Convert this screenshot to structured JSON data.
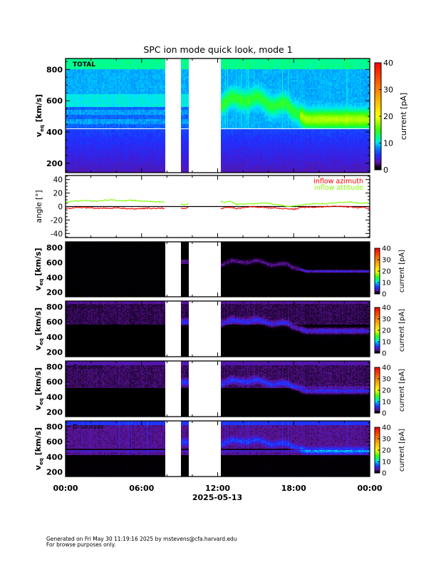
{
  "title": "SPC ion mode quick look, mode 1",
  "footer": {
    "line1": "Generated on Fri May 30 11:19:16 2025 by mstevens@cfa.harvard.edu",
    "line2": "For browse purposes only."
  },
  "x_axis": {
    "tick_labels": [
      "00:00",
      "06:00",
      "12:00",
      "18:00",
      "00:00"
    ],
    "tick_hours": [
      0,
      6,
      12,
      18,
      24
    ],
    "date_label": "2025-05-13"
  },
  "colors": {
    "azimuth": "#ff0000",
    "attitude": "#80ff00",
    "colormap": [
      "#000000",
      "#6a1aa8",
      "#1e2cff",
      "#00e0ff",
      "#00ff80",
      "#ffff00",
      "#ff8000",
      "#ff0000"
    ]
  },
  "chart_data": [
    {
      "type": "heatmap",
      "panel": "total",
      "label": "TOTAL",
      "ylabel_main": "v",
      "ylabel_sub": "eq",
      "ylabel_unit": " [km/s]",
      "ylim": [
        140,
        870
      ],
      "yticks": [
        200,
        400,
        600,
        800
      ],
      "colorbar": {
        "label": "current [pA]",
        "range": [
          0,
          40
        ],
        "ticks": [
          0,
          10,
          20,
          30,
          40
        ]
      },
      "data_gaps_hours": [
        [
          7.85,
          9.1
        ],
        [
          9.7,
          12.25
        ]
      ],
      "peak_speed_kms": {
        "hours": [
          0,
          8,
          12.3,
          14,
          16,
          17.5,
          19,
          24
        ],
        "values": [
          600,
          600,
          580,
          620,
          590,
          560,
          480,
          480
        ]
      }
    },
    {
      "type": "line",
      "panel": "angle",
      "ylabel": "angle [°]",
      "ylim": [
        -46,
        46
      ],
      "yticks": [
        -40,
        -20,
        0,
        20,
        40
      ],
      "legend_placement": "top-right",
      "series": [
        {
          "name": "inflow azimuth",
          "segments": [
            {
              "hours": [
                0,
                0.5,
                1,
                1.5,
                2,
                2.5,
                3,
                3.5,
                4,
                4.5,
                5,
                5.5,
                6,
                6.5,
                7,
                7.5,
                7.8
              ],
              "values": [
                -3,
                -2.5,
                -1,
                -1.5,
                -2,
                -2.5,
                -2.5,
                -3,
                -2,
                -2.5,
                -3,
                -3.5,
                -3,
                -2.5,
                -3,
                -2.5,
                -2.5
              ]
            },
            {
              "hours": [
                9.1,
                9.4,
                9.7
              ],
              "values": [
                -2,
                -3,
                -1
              ]
            },
            {
              "hours": [
                12.25,
                12.5,
                13,
                13.5,
                14,
                14.5,
                15,
                15.5,
                16,
                16.5,
                17,
                17.5,
                18,
                18.5,
                19,
                19.5,
                20,
                20.5,
                21,
                21.5,
                22,
                22.5,
                23,
                23.5,
                24
              ],
              "values": [
                -3,
                -2,
                -1,
                -3,
                -2,
                0,
                -1,
                -1,
                -2,
                -2,
                -3,
                -3,
                -4,
                -2,
                -1,
                -1,
                -1,
                0,
                0,
                0,
                0,
                -1,
                -2,
                -1,
                -3
              ]
            }
          ]
        },
        {
          "name": "inflow attitude",
          "segments": [
            {
              "hours": [
                0,
                0.5,
                1,
                1.5,
                2,
                2.5,
                3,
                3.5,
                4,
                4.5,
                5,
                5.5,
                6,
                6.5,
                7,
                7.5,
                7.8
              ],
              "values": [
                6,
                8,
                8,
                9,
                8,
                8,
                9,
                10,
                9,
                8,
                9,
                9,
                8,
                8,
                7,
                7,
                7
              ]
            },
            {
              "hours": [
                9.1,
                9.4,
                9.7
              ],
              "values": [
                4,
                2,
                5
              ]
            },
            {
              "hours": [
                12.25,
                12.5,
                13,
                13.5,
                14,
                14.5,
                15,
                15.5,
                16,
                16.5,
                17,
                17.5,
                18,
                18.5,
                19,
                19.5,
                20,
                20.5,
                21,
                21.5,
                22,
                22.5,
                23,
                23.5,
                24
              ],
              "values": [
                8,
                6,
                8,
                3,
                4,
                4,
                4,
                5,
                5,
                3,
                2,
                0,
                1,
                2,
                3,
                4,
                4,
                4,
                5,
                6,
                6,
                7,
                5,
                5,
                6
              ]
            }
          ]
        }
      ]
    },
    {
      "type": "heatmap",
      "panel": "a",
      "label": "",
      "ylabel_main": "v",
      "ylabel_sub": "eq",
      "ylabel_unit": " [km/s]",
      "ylim": [
        140,
        875
      ],
      "yticks": [
        200,
        400,
        600,
        800
      ],
      "colorbar": {
        "label": "current [pA]",
        "range": [
          0,
          40
        ],
        "ticks": [
          0,
          10,
          20,
          30,
          40
        ]
      }
    },
    {
      "type": "heatmap",
      "panel": "b",
      "label": "B sensor",
      "ylabel_main": "v",
      "ylabel_sub": "eq",
      "ylabel_unit": " [km/s]",
      "ylim": [
        140,
        875
      ],
      "yticks": [
        200,
        400,
        600,
        800
      ],
      "colorbar": {
        "label": "current [pA]",
        "range": [
          0,
          40
        ],
        "ticks": [
          0,
          10,
          20,
          30,
          40
        ]
      }
    },
    {
      "type": "heatmap",
      "panel": "c",
      "label": "C sensor",
      "ylabel_main": "v",
      "ylabel_sub": "eq",
      "ylabel_unit": " [km/s]",
      "ylim": [
        140,
        875
      ],
      "yticks": [
        200,
        400,
        600,
        800
      ],
      "colorbar": {
        "label": "current [pA]",
        "range": [
          0,
          40
        ],
        "ticks": [
          0,
          10,
          20,
          30,
          40
        ]
      }
    },
    {
      "type": "heatmap",
      "panel": "d",
      "label": "D sensor",
      "ylabel_main": "v",
      "ylabel_sub": "eq",
      "ylabel_unit": " [km/s]",
      "ylim": [
        140,
        875
      ],
      "yticks": [
        200,
        400,
        600,
        800
      ],
      "colorbar": {
        "label": "current [pA]",
        "range": [
          0,
          40
        ],
        "ticks": [
          0,
          10,
          20,
          30,
          40
        ]
      }
    }
  ]
}
